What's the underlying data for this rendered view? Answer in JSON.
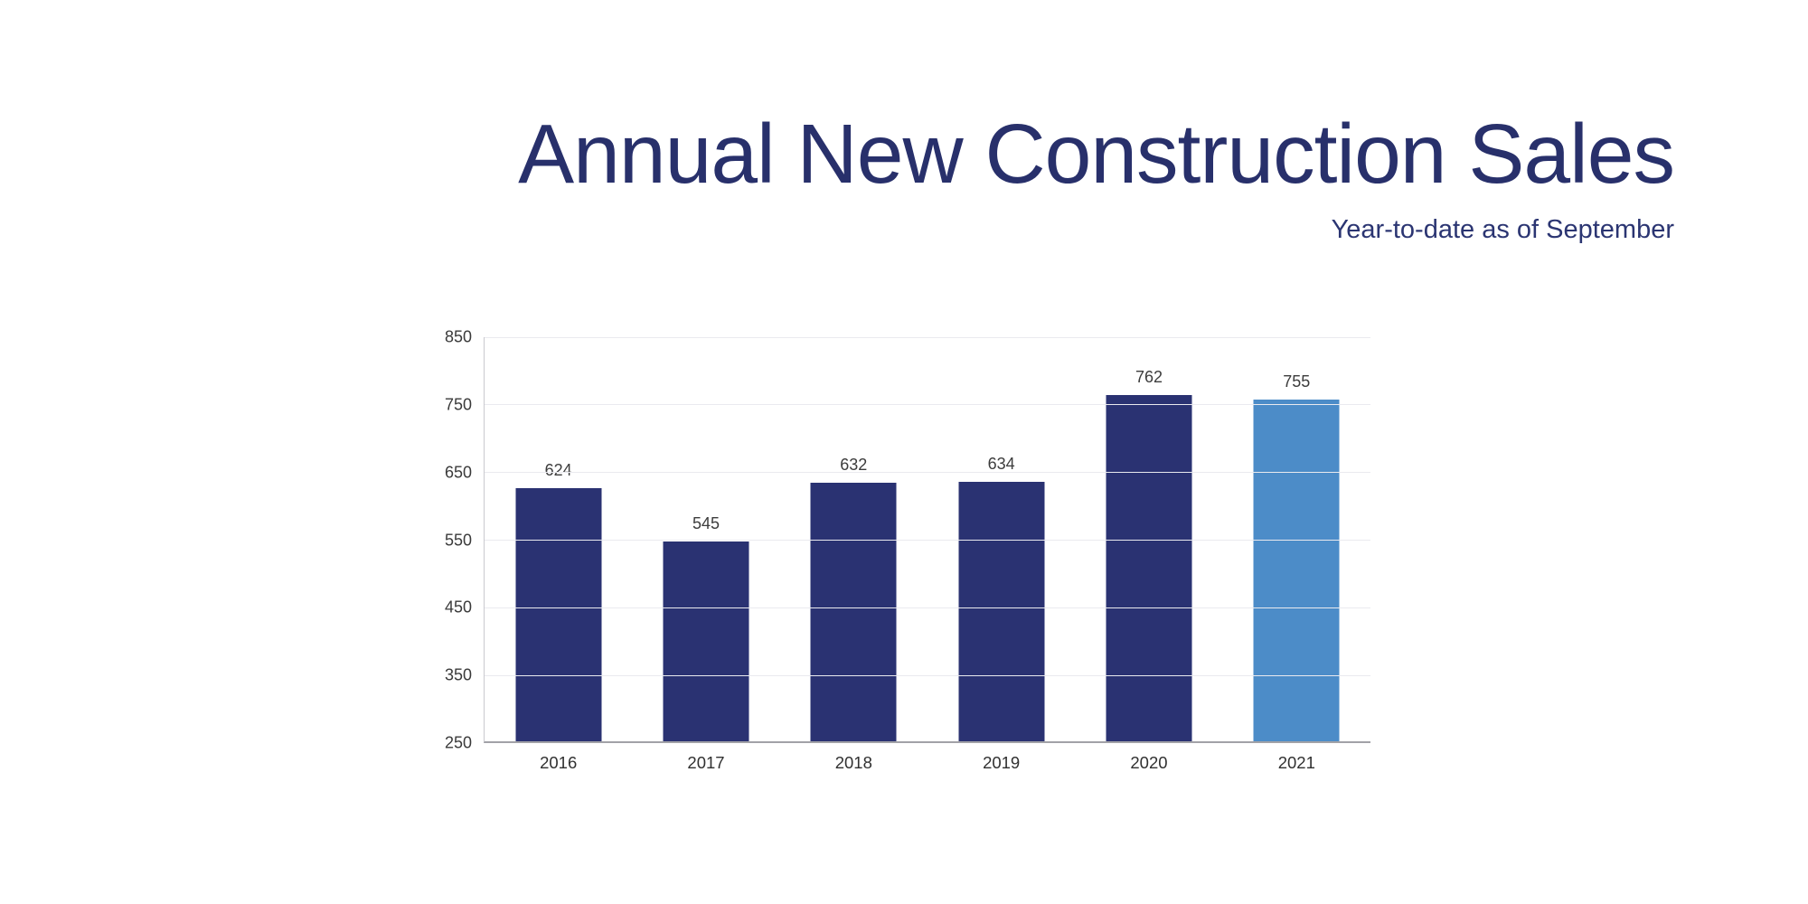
{
  "header": {
    "title": "Annual New Construction Sales",
    "subtitle": "Year-to-date as of September",
    "title_color": "#28306B",
    "subtitle_color": "#2B3572"
  },
  "chart_data": {
    "type": "bar",
    "title": "Annual New Construction Sales",
    "subtitle": "Year-to-date as of September",
    "categories": [
      "2016",
      "2017",
      "2018",
      "2019",
      "2020",
      "2021"
    ],
    "values": [
      624,
      545,
      632,
      634,
      762,
      755
    ],
    "data_labels": [
      "624",
      "545",
      "632",
      "634",
      "762",
      "755"
    ],
    "bar_color_default": "#2A3272",
    "bar_color_highlight": "#4C8CC8",
    "highlight_category": "2021",
    "ylim": [
      250,
      850
    ],
    "yticks": [
      250,
      350,
      450,
      550,
      650,
      750,
      850
    ],
    "grid": "horizontal-light",
    "gridline_color": "#EAEAEF",
    "axis_color": "#A2A2A7",
    "legend": "none",
    "xlabel": "",
    "ylabel": ""
  }
}
